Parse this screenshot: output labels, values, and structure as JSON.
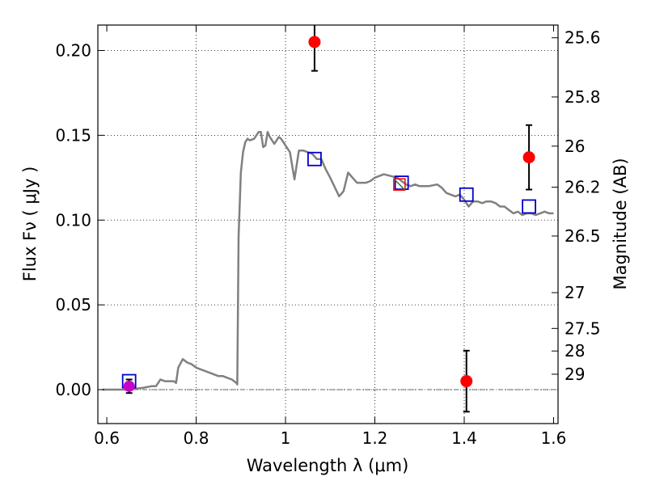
{
  "chart_data": {
    "type": "scatter",
    "xlabel": "Wavelength  λ (μm)",
    "ylabel": "Flux  Fν  ( μJy )",
    "ylabel2": "Magnitude (AB)",
    "xlim": [
      0.58,
      1.61
    ],
    "ylim": [
      -0.02,
      0.215
    ],
    "grid": true,
    "x_ticks": [
      0.6,
      0.8,
      1.0,
      1.2,
      1.4,
      1.6
    ],
    "x_tick_labels": [
      "0.6",
      "0.8",
      "1",
      "1.2",
      "1.4",
      "1.6"
    ],
    "y_ticks": [
      0.0,
      0.05,
      0.1,
      0.15,
      0.2
    ],
    "y_tick_labels": [
      "0.00",
      "0.05",
      "0.10",
      "0.15",
      "0.20"
    ],
    "mag_ticks": [
      {
        "label": "25.6",
        "flux": 0.2075
      },
      {
        "label": "25.8",
        "flux": 0.1726
      },
      {
        "label": "26",
        "flux": 0.1436
      },
      {
        "label": "26.2",
        "flux": 0.1194
      },
      {
        "label": "26.5",
        "flux": 0.0906
      },
      {
        "label": "27",
        "flux": 0.0572
      },
      {
        "label": "27.5",
        "flux": 0.0361
      },
      {
        "label": "28",
        "flux": 0.0228
      },
      {
        "label": "29",
        "flux": 0.0091
      }
    ],
    "colors": {
      "template": "#808080",
      "observed": "#ff0000",
      "model": "#0000cc",
      "special": "#cc00cc",
      "errorbar": "#000000",
      "zero_line": "#666666"
    },
    "series": [
      {
        "kind": "template",
        "x": [
          0.59,
          0.62,
          0.65,
          0.68,
          0.7,
          0.71,
          0.715,
          0.72,
          0.73,
          0.74,
          0.75,
          0.755,
          0.76,
          0.77,
          0.78,
          0.79,
          0.8,
          0.81,
          0.82,
          0.83,
          0.84,
          0.85,
          0.86,
          0.87,
          0.88,
          0.89,
          0.892,
          0.895,
          0.9,
          0.905,
          0.91,
          0.915,
          0.92,
          0.93,
          0.94,
          0.945,
          0.95,
          0.955,
          0.96,
          0.965,
          0.97,
          0.975,
          0.98,
          0.985,
          0.99,
          0.995,
          1.0,
          1.01,
          1.02,
          1.03,
          1.04,
          1.05,
          1.06,
          1.07,
          1.08,
          1.09,
          1.1,
          1.12,
          1.13,
          1.14,
          1.15,
          1.16,
          1.17,
          1.18,
          1.19,
          1.2,
          1.22,
          1.25,
          1.27,
          1.28,
          1.29,
          1.3,
          1.32,
          1.34,
          1.35,
          1.36,
          1.37,
          1.38,
          1.39,
          1.4,
          1.41,
          1.42,
          1.43,
          1.44,
          1.45,
          1.46,
          1.47,
          1.48,
          1.49,
          1.5,
          1.51,
          1.52,
          1.53,
          1.54,
          1.55,
          1.56,
          1.57,
          1.58,
          1.59,
          1.6
        ],
        "y": [
          0.0,
          0.0,
          0.0,
          0.001,
          0.002,
          0.002,
          0.004,
          0.006,
          0.005,
          0.005,
          0.005,
          0.004,
          0.013,
          0.018,
          0.016,
          0.015,
          0.013,
          0.012,
          0.011,
          0.01,
          0.009,
          0.008,
          0.008,
          0.007,
          0.006,
          0.004,
          0.003,
          0.09,
          0.128,
          0.14,
          0.146,
          0.148,
          0.147,
          0.148,
          0.152,
          0.152,
          0.143,
          0.144,
          0.152,
          0.149,
          0.147,
          0.145,
          0.147,
          0.149,
          0.148,
          0.146,
          0.144,
          0.14,
          0.124,
          0.141,
          0.141,
          0.14,
          0.139,
          0.136,
          0.136,
          0.13,
          0.125,
          0.114,
          0.117,
          0.128,
          0.125,
          0.122,
          0.122,
          0.122,
          0.123,
          0.125,
          0.127,
          0.125,
          0.121,
          0.12,
          0.121,
          0.12,
          0.12,
          0.121,
          0.119,
          0.116,
          0.115,
          0.114,
          0.115,
          0.112,
          0.108,
          0.111,
          0.111,
          0.11,
          0.111,
          0.111,
          0.11,
          0.108,
          0.108,
          0.106,
          0.104,
          0.105,
          0.103,
          0.104,
          0.104,
          0.103,
          0.104,
          0.105,
          0.104,
          0.104
        ]
      },
      {
        "kind": "observed",
        "x": [
          1.065,
          1.255,
          1.405,
          1.545
        ],
        "y": [
          0.205,
          0.121,
          0.005,
          0.137
        ],
        "yerr": [
          0.017,
          0.004,
          0.018,
          0.019
        ]
      },
      {
        "kind": "model",
        "x": [
          0.65,
          1.065,
          1.26,
          1.405,
          1.545
        ],
        "y": [
          0.005,
          0.136,
          0.122,
          0.115,
          0.108
        ]
      },
      {
        "kind": "special",
        "x": [
          0.65
        ],
        "y": [
          0.002
        ],
        "yerr": [
          0.004
        ]
      }
    ]
  }
}
